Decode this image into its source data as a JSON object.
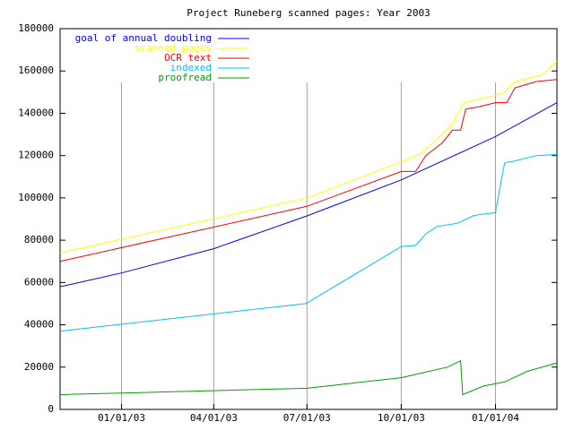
{
  "chart_data": {
    "type": "line",
    "title": "Project Runeberg scanned pages: Year 2003",
    "xlim": [
      "2002-11-02",
      "2004-03-01"
    ],
    "xticks": [
      {
        "value": "2003-01-01",
        "label": "01/01/03"
      },
      {
        "value": "2003-04-01",
        "label": "04/01/03"
      },
      {
        "value": "2003-07-01",
        "label": "07/01/03"
      },
      {
        "value": "2003-10-01",
        "label": "10/01/03"
      },
      {
        "value": "2004-01-01",
        "label": "01/01/04"
      }
    ],
    "ylim": [
      0,
      180000
    ],
    "yticks": [
      0,
      20000,
      40000,
      60000,
      80000,
      100000,
      120000,
      140000,
      160000,
      180000
    ],
    "grid": "x",
    "legend": "top-left",
    "series": [
      {
        "name": "goal of annual doubling",
        "color": "#0000ff",
        "x": [
          "2002-11-02",
          "2003-01-01",
          "2003-04-01",
          "2003-07-01",
          "2003-10-01",
          "2004-01-01",
          "2004-03-01"
        ],
        "values": [
          58000,
          64500,
          76000,
          91500,
          108500,
          129000,
          145000
        ]
      },
      {
        "name": "scanned pages",
        "color": "#ffff00",
        "x": [
          "2002-11-02",
          "2003-07-01",
          "2003-10-01",
          "2003-10-20",
          "2003-11-01",
          "2003-11-20",
          "2003-12-01",
          "2004-01-01",
          "2004-01-10",
          "2004-01-20",
          "2004-02-15",
          "2004-03-01"
        ],
        "values": [
          74000,
          100000,
          117000,
          121000,
          126000,
          135000,
          145000,
          148500,
          150000,
          155000,
          158000,
          164500
        ]
      },
      {
        "name": "OCR text",
        "color": "#ff0000",
        "x": [
          "2002-11-02",
          "2003-07-01",
          "2003-10-01",
          "2003-10-15",
          "2003-10-25",
          "2003-11-10",
          "2003-11-20",
          "2003-11-28",
          "2003-12-03",
          "2003-12-15",
          "2004-01-01",
          "2004-01-12",
          "2004-01-20",
          "2004-02-10",
          "2004-03-01"
        ],
        "values": [
          70000,
          96000,
          112500,
          112500,
          120000,
          126000,
          132000,
          132000,
          142000,
          143000,
          145000,
          145000,
          152000,
          155000,
          156000
        ]
      },
      {
        "name": "indexed",
        "color": "#00c0ff",
        "x": [
          "2002-11-02",
          "2003-06-30",
          "2003-10-01",
          "2003-10-15",
          "2003-10-25",
          "2003-11-05",
          "2003-11-25",
          "2003-12-10",
          "2003-12-15",
          "2004-01-01",
          "2004-01-05",
          "2004-01-10",
          "2004-01-20",
          "2004-02-10",
          "2004-03-01"
        ],
        "values": [
          37000,
          50000,
          77000,
          77500,
          83000,
          86500,
          88000,
          91500,
          92000,
          93000,
          104000,
          116500,
          117500,
          120000,
          120500
        ]
      },
      {
        "name": "proofread",
        "color": "#00a000",
        "x": [
          "2002-11-02",
          "2003-07-01",
          "2003-10-01",
          "2003-11-15",
          "2003-11-28",
          "2003-11-30",
          "2003-12-20",
          "2004-01-10",
          "2004-02-01",
          "2004-03-01"
        ],
        "values": [
          7000,
          10000,
          15000,
          20000,
          23000,
          7000,
          11000,
          13000,
          18000,
          22000
        ]
      }
    ]
  }
}
